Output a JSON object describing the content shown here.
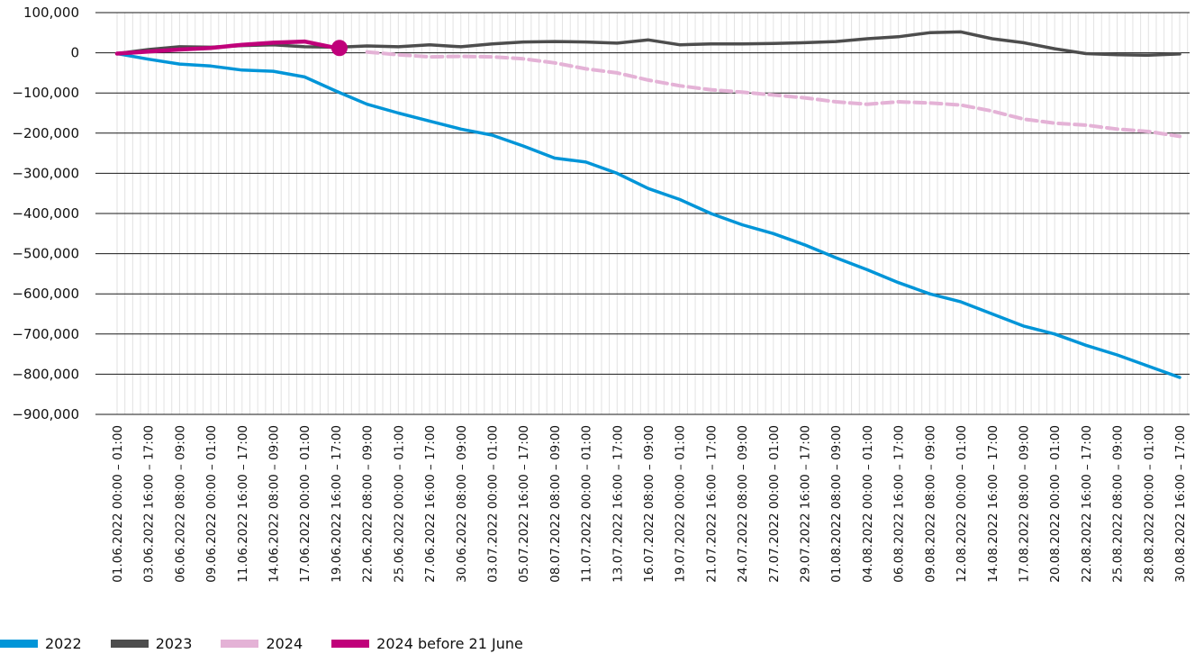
{
  "chart_data": {
    "type": "line",
    "title": "",
    "xlabel": "",
    "ylabel": "",
    "ylim": [
      -900000,
      100000
    ],
    "y_ticks": [
      "100,000",
      "0",
      "−100,000",
      "−200,000",
      "−300,000",
      "−400,000",
      "−500,000",
      "−600,000",
      "−700,000",
      "−800,000",
      "−900,000"
    ],
    "x_ticks": [
      "01.06.2022 00:00 – 01:00",
      "03.06.2022 16:00 – 17:00",
      "06.06.2022 08:00 – 09:00",
      "09.06.2022 00:00 – 01:00",
      "11.06.2022 16:00 – 17:00",
      "14.06.2022 08:00 – 09:00",
      "17.06.2022 00:00 – 01:00",
      "19.06.2022 16:00 – 17:00",
      "22.06.2022 08:00 – 09:00",
      "25.06.2022 00:00 – 01:00",
      "27.06.2022 16:00 – 17:00",
      "30.06.2022 08:00 – 09:00",
      "03.07.2022 00:00 – 01:00",
      "05.07.2022 16:00 – 17:00",
      "08.07.2022 08:00 – 09:00",
      "11.07.2022 00:00 – 01:00",
      "13.07.2022 16:00 – 17:00",
      "16.07.2022 08:00 – 09:00",
      "19.07.2022 00:00 – 01:00",
      "21.07.2022 16:00 – 17:00",
      "24.07.2022 08:00 – 09:00",
      "27.07.2022 00:00 – 01:00",
      "29.07.2022 16:00 – 17:00",
      "01.08.2022 08:00 – 09:00",
      "04.08.2022 00:00 – 01:00",
      "06.08.2022 16:00 – 17:00",
      "09.08.2022 08:00 – 09:00",
      "12.08.2022 00:00 – 01:00",
      "14.08.2022 16:00 – 17:00",
      "17.08.2022 08:00 – 09:00",
      "20.08.2022 00:00 – 01:00",
      "22.08.2022 16:00 – 17:00",
      "25.08.2022 08:00 – 09:00",
      "28.08.2022 00:00 – 01:00",
      "30.08.2022 16:00 – 17:00"
    ],
    "grid": true,
    "legend_position": "bottom-left",
    "series": [
      {
        "name": "2022",
        "color": "#0095d8",
        "style": "solid",
        "values": [
          -2000,
          -16000,
          -28000,
          -33000,
          -43000,
          -46000,
          -60000,
          -95000,
          -128000,
          -150000,
          -170000,
          -190000,
          -205000,
          -232000,
          -262000,
          -272000,
          -300000,
          -338000,
          -365000,
          -400000,
          -428000,
          -450000,
          -478000,
          -510000,
          -540000,
          -572000,
          -600000,
          -620000,
          -650000,
          -680000,
          -700000,
          -728000,
          -752000,
          -780000,
          -808000
        ]
      },
      {
        "name": "2023",
        "color": "#4d4d4d",
        "style": "solid",
        "values": [
          -2000,
          8000,
          15000,
          14000,
          18000,
          20000,
          15000,
          14000,
          17000,
          15000,
          20000,
          15000,
          22000,
          27000,
          28000,
          27000,
          24000,
          32000,
          20000,
          22000,
          22000,
          23000,
          25000,
          28000,
          35000,
          40000,
          50000,
          52000,
          35000,
          25000,
          10000,
          -2000,
          -5000,
          -6000,
          -3000
        ]
      },
      {
        "name": "2024",
        "color": "#e4b2d6",
        "style": "dashed",
        "values": [
          null,
          null,
          null,
          null,
          null,
          null,
          null,
          null,
          2000,
          -5000,
          -10000,
          -9000,
          -10000,
          -15000,
          -25000,
          -40000,
          -50000,
          -68000,
          -82000,
          -92000,
          -98000,
          -105000,
          -112000,
          -122000,
          -128000,
          -122000,
          -125000,
          -130000,
          -145000,
          -165000,
          -175000,
          -180000,
          -190000,
          -196000,
          -208000
        ]
      },
      {
        "name": "2024 before 21 June",
        "color": "#c0007a",
        "style": "solid",
        "values": [
          -2000,
          3000,
          8000,
          12000,
          20000,
          25000,
          28000,
          12000,
          null,
          null,
          null,
          null,
          null,
          null,
          null,
          null,
          null,
          null,
          null,
          null,
          null,
          null,
          null,
          null,
          null,
          null,
          null,
          null,
          null,
          null,
          null,
          null,
          null,
          null,
          null
        ]
      }
    ]
  }
}
